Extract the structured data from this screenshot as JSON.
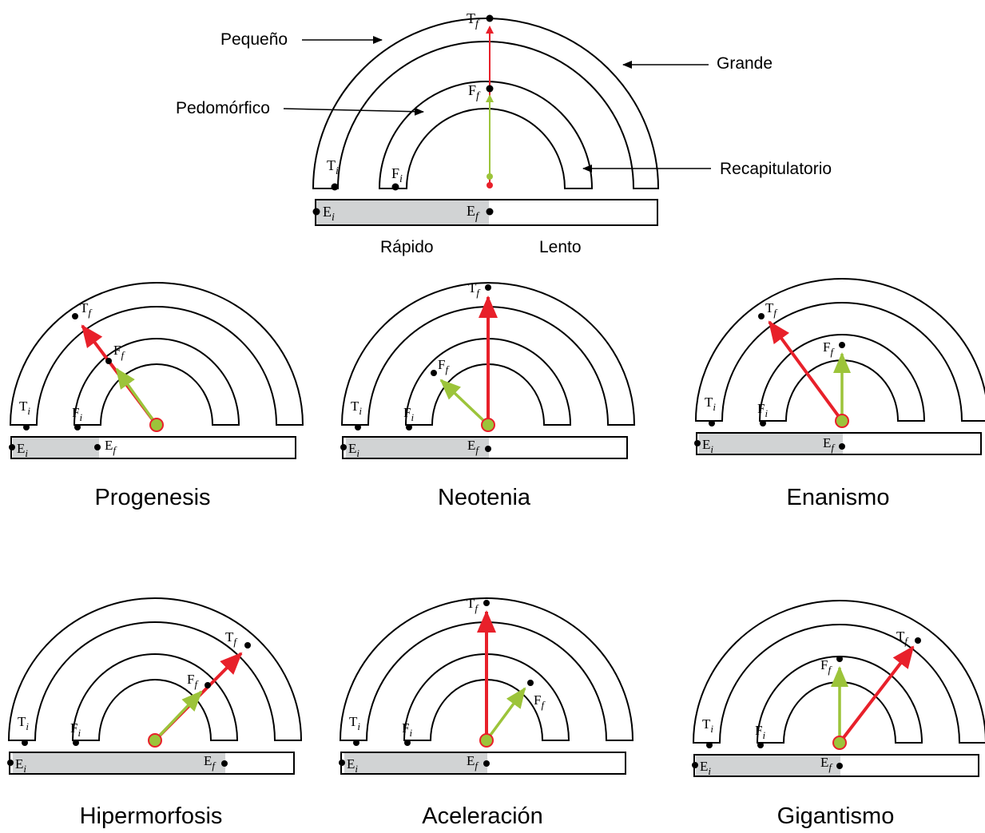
{
  "colors": {
    "terminal_arrow": "#e8202a",
    "form_arrow": "#9cc43a",
    "onset_fill": "#d1d3d4",
    "outline": "#000000"
  },
  "legend": {
    "small": "Pequeño",
    "large": "Grande",
    "pedomorphic": "Pedomórfico",
    "recapitulatory": "Recapitulatorio",
    "fast": "Rápido",
    "slow": "Lento"
  },
  "symbols": {
    "T_base": "T",
    "F_base": "F",
    "E_base": "E",
    "initial": "i",
    "final": "f"
  },
  "panels": [
    {
      "title": "Progenesis"
    },
    {
      "title": "Neotenia"
    },
    {
      "title": "Enanismo"
    },
    {
      "title": "Hipermorfosis"
    },
    {
      "title": "Aceleración"
    },
    {
      "title": "Gigantismo"
    }
  ]
}
